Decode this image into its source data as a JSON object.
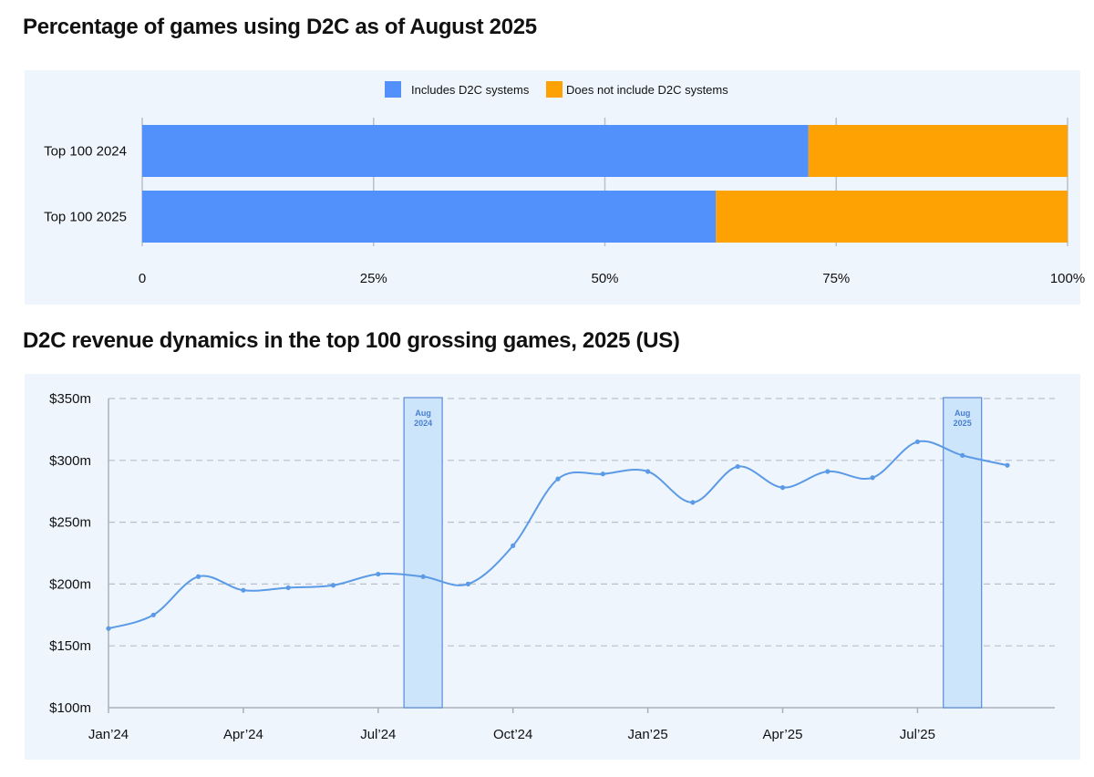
{
  "charts": {
    "bar_title": "Percentage of games using D2C as of August 2025",
    "line_title": "D2C revenue dynamics in the top 100 grossing games, 2025 (US)"
  },
  "colors": {
    "includes": "#5291fb",
    "not_includes": "#fea102",
    "line": "#5b9ae6",
    "highlight_fill": "#cce5fa",
    "highlight_stroke": "#5b8bd6",
    "grid": "#b9c0cc",
    "axis": "#aab1bc"
  },
  "chart_data": [
    {
      "type": "bar",
      "orientation": "horizontal",
      "stacked": true,
      "title": "Percentage of games using D2C as of August 2025",
      "categories": [
        "Top 100 2024",
        "Top 100 2025"
      ],
      "series": [
        {
          "name": "Includes D2C systems",
          "values": [
            72,
            62
          ]
        },
        {
          "name": "Does not include D2C systems",
          "values": [
            28,
            38
          ]
        }
      ],
      "xlim": [
        0,
        100
      ],
      "xticks": [
        {
          "value": 0,
          "label": "0"
        },
        {
          "value": 25,
          "label": "25%"
        },
        {
          "value": 50,
          "label": "50%"
        },
        {
          "value": 75,
          "label": "75%"
        },
        {
          "value": 100,
          "label": "100%"
        }
      ],
      "legend": "top-center",
      "grid": true
    },
    {
      "type": "line",
      "title": "D2C revenue dynamics in the top 100 grossing games, 2025 (US)",
      "x": [
        "Jan'24",
        "Feb'24",
        "Mar'24",
        "Apr'24",
        "May'24",
        "Jun'24",
        "Jul'24",
        "Aug'24",
        "Sep'24",
        "Oct'24",
        "Nov'24",
        "Dec'24",
        "Jan'25",
        "Feb'25",
        "Mar'25",
        "Apr'25",
        "May'25",
        "Jun'25",
        "Jul'25",
        "Aug'25",
        "Sep'25"
      ],
      "values": [
        164,
        175,
        206,
        195,
        197,
        199,
        208,
        206,
        200,
        231,
        285,
        289,
        291,
        266,
        295,
        278,
        291,
        286,
        315,
        304,
        296
      ],
      "xtick_labels": [
        {
          "index": 0,
          "label": "Jan’24"
        },
        {
          "index": 3,
          "label": "Apr’24"
        },
        {
          "index": 6,
          "label": "Jul’24"
        },
        {
          "index": 9,
          "label": "Oct’24"
        },
        {
          "index": 12,
          "label": "Jan’25"
        },
        {
          "index": 15,
          "label": "Apr’25"
        },
        {
          "index": 18,
          "label": "Jul’25"
        }
      ],
      "ylim": [
        100,
        350
      ],
      "yticks": [
        {
          "value": 100,
          "label": "$100m"
        },
        {
          "value": 150,
          "label": "$150m"
        },
        {
          "value": 200,
          "label": "$200m"
        },
        {
          "value": 250,
          "label": "$250m"
        },
        {
          "value": 300,
          "label": "$300m"
        },
        {
          "value": 350,
          "label": "$350m"
        }
      ],
      "highlights": [
        {
          "index": 7,
          "line1": "Aug",
          "line2": "2024"
        },
        {
          "index": 19,
          "line1": "Aug",
          "line2": "2025"
        }
      ],
      "grid": true
    }
  ]
}
